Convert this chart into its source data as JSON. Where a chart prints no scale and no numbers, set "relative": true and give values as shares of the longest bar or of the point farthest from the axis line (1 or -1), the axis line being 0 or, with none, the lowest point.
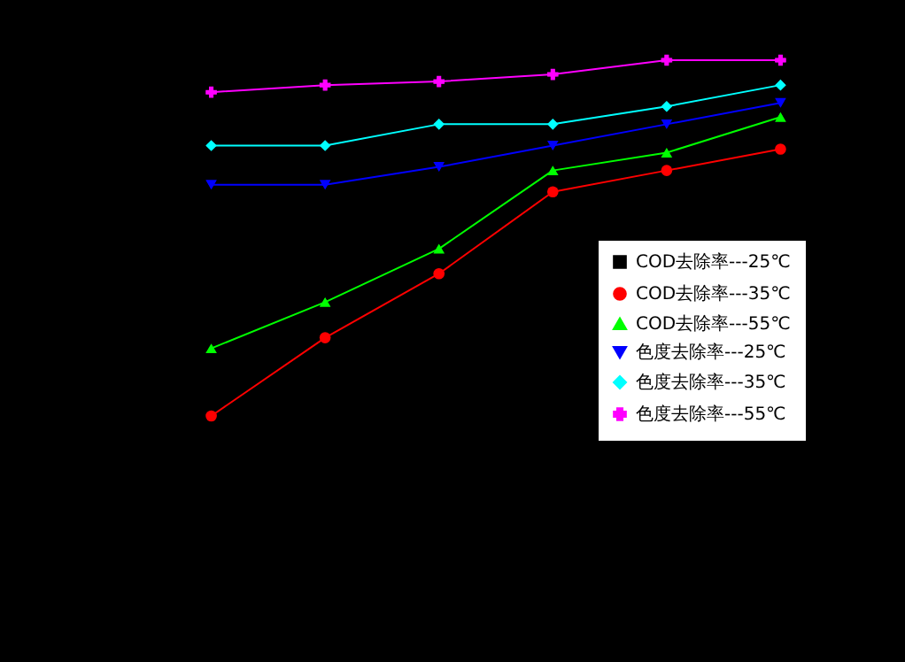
{
  "chart_data": {
    "type": "line",
    "relative": true,
    "legend": "right",
    "categories": [
      null,
      null,
      null,
      null,
      null,
      null
    ],
    "series": [
      {
        "name": "COD去除率---25℃",
        "color": "#000000",
        "marker": "square",
        "values": [
          null,
          null,
          null,
          null,
          null,
          null
        ]
      },
      {
        "name": "COD去除率---35℃",
        "color": "#ff0000",
        "marker": "circle",
        "values": [
          0,
          0.22,
          0.4,
          0.63,
          0.69,
          0.75
        ]
      },
      {
        "name": "COD去除率---55℃",
        "color": "#00ff00",
        "marker": "triangle",
        "values": [
          0.19,
          0.32,
          0.47,
          0.69,
          0.74,
          0.84
        ]
      },
      {
        "name": "色度去除率---25℃",
        "color": "#0000ff",
        "marker": "triangle-down",
        "values": [
          0.65,
          0.65,
          0.7,
          0.76,
          0.82,
          0.88
        ]
      },
      {
        "name": "色度去除率---35℃",
        "color": "#00ffff",
        "marker": "diamond",
        "values": [
          0.76,
          0.76,
          0.82,
          0.82,
          0.87,
          0.93
        ]
      },
      {
        "name": "色度去除率---55℃",
        "color": "#ff00ff",
        "marker": "cross",
        "values": [
          0.91,
          0.93,
          0.94,
          0.96,
          1,
          1
        ]
      }
    ]
  }
}
